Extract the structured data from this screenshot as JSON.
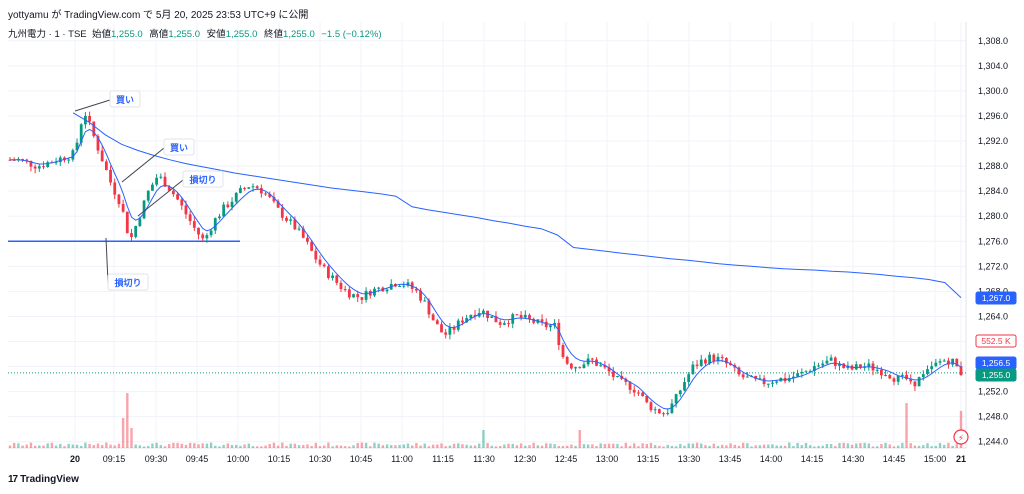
{
  "header": {
    "publisher": "yottyamu が TradingView.com で 5月 20, 2025 23:53 UTC+9 に公開",
    "symbol": "九州電力 · 1 · TSE",
    "open_label": "始値",
    "open": "1,255.0",
    "high_label": "高値",
    "high": "1,255.0",
    "low_label": "安値",
    "low": "1,255.0",
    "close_label": "終値",
    "close": "1,255.0",
    "change": "−1.5 (−0.12%)"
  },
  "footer": {
    "brand": "TradingView"
  },
  "colors": {
    "up": "#089981",
    "down": "#f23645",
    "vwap": "#2962ff",
    "ema": "#2962ff",
    "grid": "#f0f3fa",
    "level": "#2962ff"
  },
  "chart_data": {
    "type": "candlestick",
    "y_ticks": [
      "1,244.0",
      "1,248.0",
      "1,252.0",
      "1,256.0",
      "1,260.0",
      "1,264.0",
      "1,268.0",
      "1,272.0",
      "1,276.0",
      "1,280.0",
      "1,284.0",
      "1,288.0",
      "1,292.0",
      "1,296.0",
      "1,300.0",
      "1,304.0",
      "1,308.0"
    ],
    "ylim": [
      1243,
      1311
    ],
    "x_ticks": [
      "20",
      "09:15",
      "09:30",
      "09:45",
      "10:00",
      "10:15",
      "10:30",
      "10:45",
      "11:00",
      "11:15",
      "11:30",
      "12:30",
      "12:45",
      "13:00",
      "13:15",
      "13:30",
      "13:45",
      "14:00",
      "14:15",
      "14:30",
      "14:45",
      "15:00",
      "21"
    ],
    "price_badges": [
      {
        "text": "552.5 K",
        "style": "volume"
      },
      {
        "text": "1,267.0",
        "style": "vwap",
        "value": 1267.0
      },
      {
        "text": "1,256.5",
        "style": "ema",
        "value": 1256.5
      },
      {
        "text": "1,255.0",
        "style": "last",
        "value": 1255.0
      }
    ],
    "horizontal_level": 1276.0,
    "annotations": [
      {
        "text": "買い",
        "kind": "buy",
        "time_index": 8,
        "price": 1297.0
      },
      {
        "text": "買い",
        "kind": "buy",
        "time_index": 14,
        "price": 1286.5
      },
      {
        "text": "損切り",
        "kind": "stop",
        "time_index": 31,
        "price": 1285.0
      },
      {
        "text": "損切り",
        "kind": "stop",
        "time_index": 12,
        "price": 1276.0
      }
    ],
    "close_path": [
      1289.0,
      1289.0,
      1288.5,
      1288.0,
      1288.5,
      1289.0,
      1289.5,
      1290.0,
      1297.0,
      1293.0,
      1289.0,
      1285.0,
      1282.0,
      1276.0,
      1280.0,
      1284.0,
      1286.5,
      1285.0,
      1283.0,
      1280.5,
      1278.0,
      1276.0,
      1279.0,
      1281.0,
      1282.5,
      1284.0,
      1285.0,
      1284.5,
      1283.0,
      1281.0,
      1279.5,
      1278.0,
      1276.0,
      1273.5,
      1271.5,
      1270.0,
      1268.5,
      1267.5,
      1267.0,
      1268.0,
      1268.5,
      1269.0,
      1269.5,
      1269.0,
      1268.0,
      1266.0,
      1263.0,
      1261.0,
      1262.0,
      1263.5,
      1264.5,
      1265.0,
      1264.0,
      1263.0,
      1263.5,
      1264.0,
      1263.5,
      1263.0,
      1262.5,
      1262.5,
      1257.0,
      1256.0,
      1256.5,
      1257.0,
      1256.0,
      1255.0,
      1253.5,
      1253.0,
      1252.0,
      1250.0,
      1249.0,
      1248.5,
      1250.5,
      1253.5,
      1256.0,
      1257.0,
      1257.5,
      1257.0,
      1256.0,
      1254.5,
      1254.0,
      1253.5,
      1253.5,
      1254.0,
      1254.0,
      1254.5,
      1255.0,
      1256.0,
      1256.5,
      1257.0,
      1256.0,
      1255.5,
      1256.0,
      1256.0,
      1255.5,
      1255.0,
      1254.0,
      1254.0,
      1253.5,
      1254.5,
      1256.0,
      1257.0,
      1257.0,
      1255.0
    ],
    "vwap_path": [
      1296.5,
      1295.0,
      1293.0,
      1291.5,
      1290.5,
      1289.7,
      1289.0,
      1288.4,
      1287.9,
      1287.4,
      1286.9,
      1286.5,
      1286.1,
      1285.7,
      1285.3,
      1284.9,
      1284.5,
      1284.2,
      1283.9,
      1283.6,
      1283.2,
      1281.5,
      1281.0,
      1280.6,
      1280.2,
      1279.8,
      1279.3,
      1278.9,
      1278.4,
      1278.0,
      1277.0,
      1275.0,
      1274.7,
      1274.4,
      1274.1,
      1273.8,
      1273.5,
      1273.2,
      1273.0,
      1272.7,
      1272.4,
      1272.2,
      1272.0,
      1271.8,
      1271.6,
      1271.5,
      1271.4,
      1271.2,
      1271.1,
      1270.9,
      1270.7,
      1270.4,
      1270.2,
      1269.9,
      1269.4,
      1267.0
    ]
  }
}
